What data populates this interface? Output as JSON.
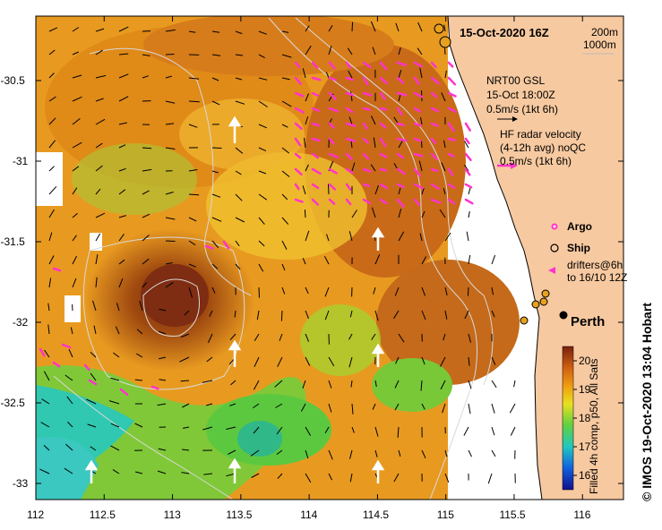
{
  "title": "15-Oct-2020 16Z",
  "depth_legend": [
    "200m",
    "1000m"
  ],
  "nrt_legend": [
    "NRT00 GSL",
    "15-Oct 18:00Z",
    "0.5m/s (1kt 6h)"
  ],
  "hf_legend": [
    "HF radar velocity",
    "(4-12h avg) noQC",
    "0.5m/s (1kt 6h)"
  ],
  "argo_label": "Argo",
  "ship_label": "Ship",
  "drifters_label": [
    "drifters@6h",
    "to 16/10 12Z"
  ],
  "city_label": "Perth",
  "colorbar": {
    "label": "Filled 4h comp, p50, All Sats",
    "ticks": [
      "16",
      "17",
      "18",
      "19",
      "20"
    ],
    "range": [
      15.5,
      20.5
    ]
  },
  "credit": "© IMOS 19-Oct-2020 13:04 Hobart",
  "axes": {
    "x_ticks": [
      "112",
      "112.5",
      "113",
      "113.5",
      "114",
      "114.5",
      "115",
      "115.5",
      "116"
    ],
    "y_ticks": [
      "-30.5",
      "-31",
      "-31.5",
      "-32",
      "-32.5",
      "-33"
    ],
    "xlim": [
      112,
      116.3
    ],
    "ylim": [
      -33.1,
      -30.1
    ]
  },
  "colors": {
    "land": "#f7c9a0",
    "radar_arrows": "#ff33cc",
    "model_arrows": "#000000",
    "contours": "#d8d8d8",
    "warm_core": "#8b3010",
    "cool_water": "#30c8b0"
  }
}
